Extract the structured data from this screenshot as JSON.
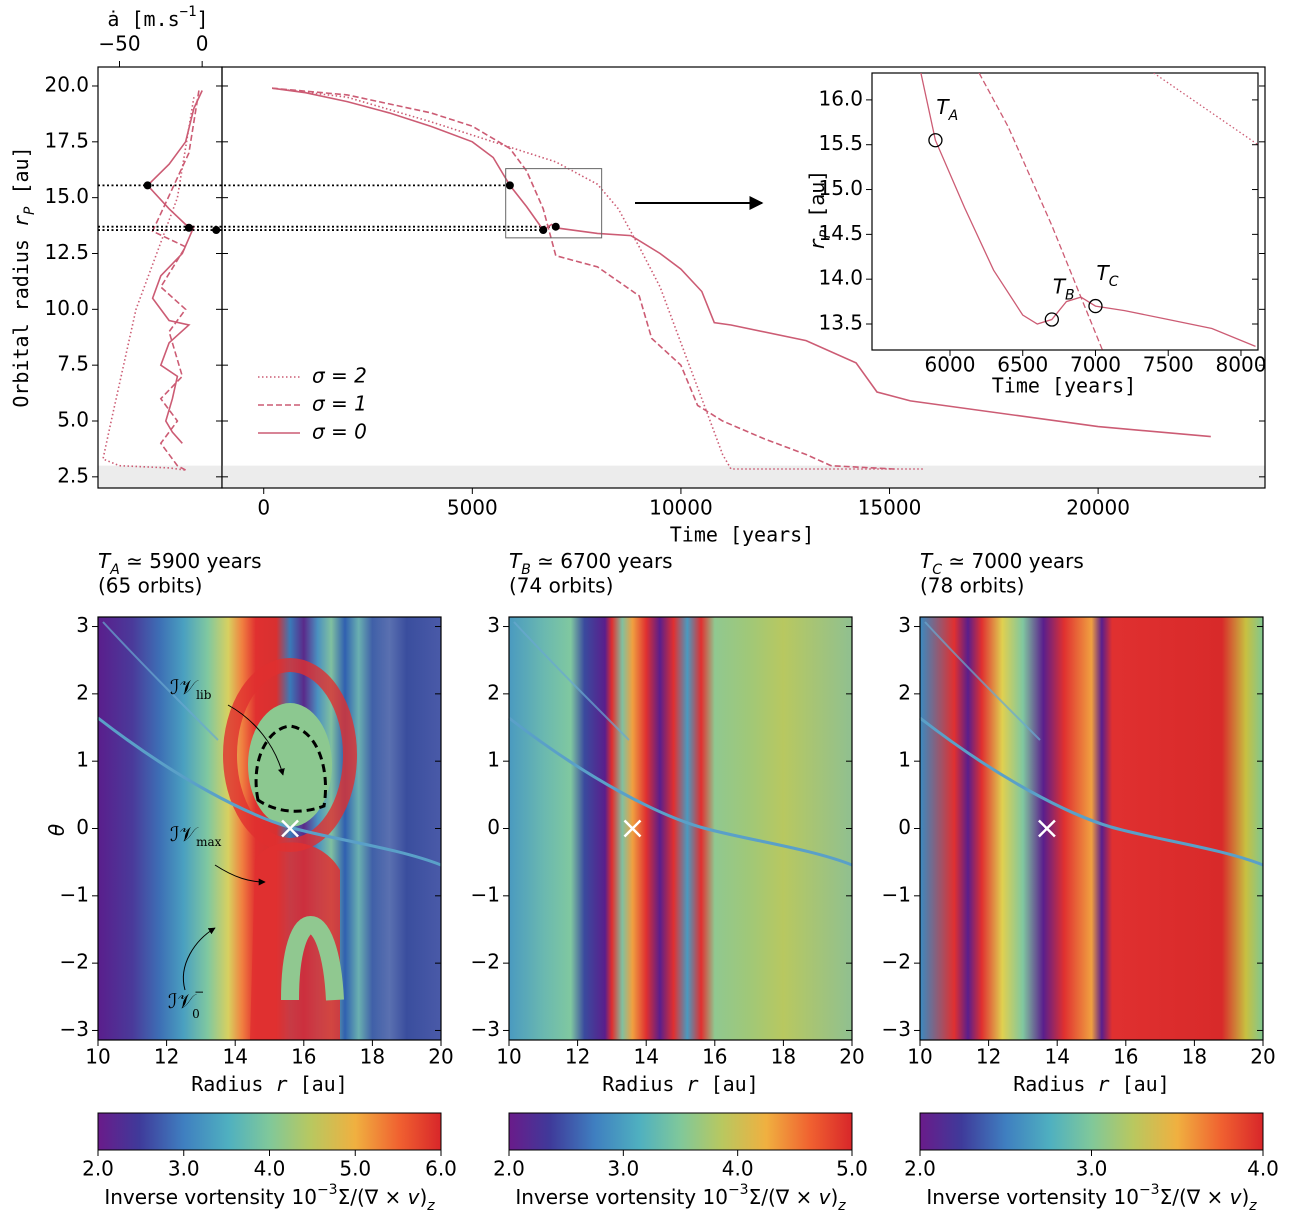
{
  "chart_data": [
    {
      "type": "line",
      "x_label": {
        "text": "ȧ [m.s",
        "sup": "−1",
        "end": "]"
      },
      "y_label": {
        "text": "Orbital radius ",
        "var": "r",
        "sub": "P",
        "end": " [au]"
      },
      "xlim": [
        -63,
        12
      ],
      "xticks": [
        {
          "value": -50,
          "label": "−50"
        },
        0
      ],
      "ylim": [
        2.0,
        20.85
      ],
      "yticks": [
        2.5,
        {
          "value": 5,
          "label": "5.0"
        },
        7.5,
        {
          "value": 10,
          "label": "10.0"
        },
        12.5,
        {
          "value": 15,
          "label": "15.0"
        },
        17.5,
        {
          "value": 20,
          "label": "20.0"
        }
      ],
      "series": [
        {
          "style": "dotted",
          "color": "#cc5c74",
          "x": [
            -5,
            -15,
            -40,
            -55,
            -60,
            -50,
            -20,
            -10
          ],
          "values": [
            19.5,
            15,
            10,
            5,
            3.3,
            3.0,
            2.9,
            2.8
          ]
        },
        {
          "style": "dashed",
          "color": "#cc5c74",
          "x": [
            -2,
            -8,
            -30,
            -10,
            -25,
            -10,
            -20,
            -12,
            -25,
            -15,
            -25,
            -15,
            -10
          ],
          "values": [
            19.8,
            17,
            13.5,
            12.8,
            11,
            10,
            9,
            7,
            6,
            5,
            4,
            3,
            2.8
          ]
        },
        {
          "style": "solid",
          "color": "#cc5c74",
          "x": [
            0,
            -5,
            -10,
            -20,
            -33,
            -20,
            -10,
            -5,
            -12,
            -25,
            -30,
            -20,
            -8,
            -20,
            -25,
            -15,
            -18,
            -22,
            -18,
            -12
          ],
          "values": [
            19.8,
            19,
            17.5,
            16.5,
            15.55,
            14.5,
            13.8,
            13.7,
            12.5,
            11.5,
            10.5,
            9.5,
            9.3,
            8.5,
            7.5,
            7,
            6,
            5,
            4.5,
            4.0
          ]
        }
      ],
      "markers": {
        "x": [
          -33,
          -8,
          8.5
        ],
        "values": [
          15.55,
          13.65,
          13.55
        ]
      }
    },
    {
      "type": "line",
      "x_label": "Time [years]",
      "xlim": [
        -1000,
        24000
      ],
      "xticks": [
        0,
        5000,
        10000,
        15000,
        20000
      ],
      "ylim": [
        2.0,
        20.85
      ],
      "yticks": [
        2.5,
        5,
        7.5,
        10,
        12.5,
        15,
        17.5,
        20
      ],
      "shaded_below": 3.0,
      "legend": "lower left",
      "series": [
        {
          "name": "σ = 2",
          "style": "dotted",
          "color": "#cc5c74",
          "x": [
            200,
            2000,
            4000,
            5000,
            6000,
            7000,
            8000,
            8500,
            9000,
            9500,
            10000,
            10500,
            11000,
            11200,
            15800
          ],
          "values": [
            19.9,
            19.5,
            18.4,
            17.8,
            17.2,
            16.6,
            15.6,
            14.5,
            12.8,
            11.0,
            8.5,
            6.0,
            3.5,
            2.85,
            2.85
          ]
        },
        {
          "name": "σ = 1",
          "style": "dashed",
          "color": "#cc5c74",
          "x": [
            200,
            2000,
            4000,
            5000,
            5900,
            6300,
            6700,
            7000,
            8000,
            9000,
            9300,
            10000,
            10400,
            11000,
            12000,
            13000,
            13600,
            15100
          ],
          "values": [
            19.9,
            19.6,
            18.8,
            18.2,
            17.2,
            16.2,
            14.5,
            12.4,
            11.9,
            10.6,
            8.7,
            7.5,
            5.7,
            5.0,
            4.2,
            3.5,
            3.0,
            2.85
          ]
        },
        {
          "name": "σ = 0",
          "style": "solid",
          "color": "#cc5c74",
          "x": [
            200,
            1000,
            2000,
            3000,
            4000,
            5000,
            5500,
            5900,
            6300,
            6700,
            6900,
            7000,
            8000,
            8800,
            9500,
            10000,
            10500,
            10800,
            11200,
            13000,
            14200,
            14700,
            15500,
            20000,
            22700
          ],
          "values": [
            19.9,
            19.7,
            19.3,
            18.8,
            18.2,
            17.5,
            16.8,
            15.55,
            14.6,
            13.55,
            13.8,
            13.65,
            13.4,
            13.3,
            12.5,
            11.8,
            10.8,
            9.4,
            9.3,
            8.6,
            7.6,
            6.3,
            5.9,
            4.75,
            4.3
          ]
        }
      ],
      "markers": {
        "x": [
          5900,
          6700,
          7000
        ],
        "values": [
          15.55,
          13.55,
          13.7
        ]
      },
      "zoom_box": {
        "xlim": [
          5800,
          8100
        ],
        "ylim": [
          13.2,
          16.3
        ]
      }
    },
    {
      "type": "line",
      "x_label": "Time [years]",
      "y_label": {
        "var": "r",
        "sub": "P",
        "end": " [au]"
      },
      "xlim": [
        5464,
        8117
      ],
      "xticks": [
        6000,
        6500,
        7000,
        7500,
        8000
      ],
      "ylim": [
        13.21,
        16.3
      ],
      "yticks": [
        13.5,
        {
          "value": 14,
          "label": "14.0"
        },
        14.5,
        {
          "value": 15,
          "label": "15.0"
        },
        15.5,
        {
          "value": 16,
          "label": "16.0"
        }
      ],
      "series": [
        {
          "style": "dotted",
          "color": "#cc5c74",
          "x": [
            7400,
            8117
          ],
          "values": [
            16.3,
            15.5
          ]
        },
        {
          "style": "dashed",
          "color": "#cc5c74",
          "x": [
            6200,
            6400,
            6700,
            6900,
            7050
          ],
          "values": [
            16.3,
            15.7,
            14.6,
            13.8,
            13.2
          ]
        },
        {
          "style": "solid",
          "color": "#cc5c74",
          "x": [
            5800,
            5900,
            6100,
            6300,
            6500,
            6600,
            6700,
            6800,
            6900,
            7000,
            7200,
            7500,
            7800,
            8100
          ],
          "values": [
            16.3,
            15.55,
            14.8,
            14.1,
            13.6,
            13.5,
            13.55,
            13.75,
            13.8,
            13.7,
            13.65,
            13.55,
            13.45,
            13.25
          ]
        }
      ],
      "annotations": [
        {
          "label": "T",
          "subscript": "A",
          "x": 5900,
          "y": 15.55
        },
        {
          "label": "T",
          "subscript": "B",
          "x": 6700,
          "y": 13.55
        },
        {
          "label": "T",
          "subscript": "C",
          "x": 7000,
          "y": 13.7
        }
      ]
    },
    {
      "type": "heatmap",
      "title": {
        "var": "T",
        "sub": "A",
        "text": " ≃ 5900 years",
        "line2": "(65 orbits)"
      },
      "x_label": {
        "text": "Radius ",
        "var": "r",
        "end": " [au]"
      },
      "y_label": "θ",
      "xlim": [
        10,
        20
      ],
      "xticks": [
        10,
        12,
        14,
        16,
        18,
        20
      ],
      "ylim": [
        -3.1416,
        3.1416
      ],
      "yticks": [
        {
          "value": -3,
          "label": "−3"
        },
        {
          "value": -2,
          "label": "−2"
        },
        {
          "value": -1,
          "label": "−1"
        },
        0,
        1,
        2,
        3
      ],
      "planet": {
        "r": 15.6,
        "theta": 0
      },
      "annotations": [
        {
          "text": "ℐ𝒱",
          "subscript": "lib"
        },
        {
          "text": "ℐ𝒱",
          "subscript": "max"
        },
        {
          "text": "ℐ𝒱",
          "subscript": "0",
          "superscript": "−"
        }
      ],
      "colorbar": {
        "clim": [
          2,
          6
        ],
        "ticks": [
          {
            "value": 2,
            "label": "2.0"
          },
          {
            "value": 3,
            "label": "3.0"
          },
          {
            "value": 4,
            "label": "4.0"
          },
          {
            "value": 5,
            "label": "5.0"
          },
          {
            "value": 6,
            "label": "6.0"
          }
        ],
        "label": {
          "text": "Inverse vortensity 10",
          "sup": "−3",
          "mid": "Σ/(∇ × ",
          "var": "v",
          "end": ")",
          "sub": "z"
        }
      }
    },
    {
      "type": "heatmap",
      "title": {
        "var": "T",
        "sub": "B",
        "text": " ≃ 6700 years",
        "line2": "(74 orbits)"
      },
      "x_label": {
        "text": "Radius ",
        "var": "r",
        "end": " [au]"
      },
      "xlim": [
        10,
        20
      ],
      "xticks": [
        10,
        12,
        14,
        16,
        18,
        20
      ],
      "ylim": [
        -3.1416,
        3.1416
      ],
      "yticks": [
        {
          "value": -3,
          "label": "−3"
        },
        {
          "value": -2,
          "label": "−2"
        },
        {
          "value": -1,
          "label": "−1"
        },
        0,
        1,
        2,
        3
      ],
      "planet": {
        "r": 13.6,
        "theta": 0
      },
      "colorbar": {
        "clim": [
          2,
          5
        ],
        "ticks": [
          {
            "value": 2,
            "label": "2.0"
          },
          {
            "value": 3,
            "label": "3.0"
          },
          {
            "value": 4,
            "label": "4.0"
          },
          {
            "value": 5,
            "label": "5.0"
          }
        ],
        "label": {
          "text": "Inverse vortensity 10",
          "sup": "−3",
          "mid": "Σ/(∇ × ",
          "var": "v",
          "end": ")",
          "sub": "z"
        }
      }
    },
    {
      "type": "heatmap",
      "title": {
        "var": "T",
        "sub": "C",
        "text": " ≃ 7000 years",
        "line2": "(78 orbits)"
      },
      "x_label": {
        "text": "Radius ",
        "var": "r",
        "end": " [au]"
      },
      "xlim": [
        10,
        20
      ],
      "xticks": [
        10,
        12,
        14,
        16,
        18,
        20
      ],
      "ylim": [
        -3.1416,
        3.1416
      ],
      "yticks": [
        {
          "value": -3,
          "label": "−3"
        },
        {
          "value": -2,
          "label": "−2"
        },
        {
          "value": -1,
          "label": "−1"
        },
        0,
        1,
        2,
        3
      ],
      "planet": {
        "r": 13.7,
        "theta": 0
      },
      "colorbar": {
        "clim": [
          2,
          4
        ],
        "ticks": [
          {
            "value": 2,
            "label": "2.0"
          },
          {
            "value": 3,
            "label": "3.0"
          },
          {
            "value": 4,
            "label": "4.0"
          }
        ],
        "label": {
          "text": "Inverse vortensity 10",
          "sup": "−3",
          "mid": "Σ/(∇ × ",
          "var": "v",
          "end": ")",
          "sub": "z"
        }
      }
    }
  ]
}
